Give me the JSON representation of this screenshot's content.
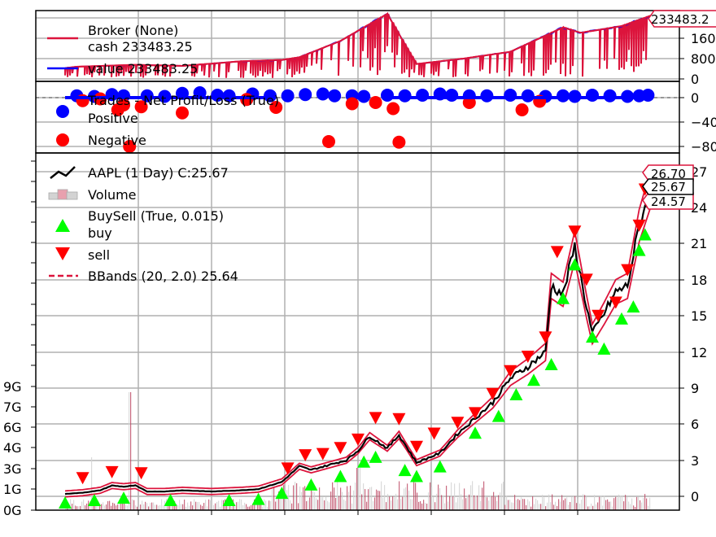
{
  "colors": {
    "broker": "#dc143c",
    "value": "#0000ff",
    "positive": "#0000ff",
    "negative": "#ff0000",
    "price": "#000000",
    "volume_up": "#d3d3d3",
    "volume_down": "#e8a0ae",
    "buy": "#00ff00",
    "sell": "#ff0000",
    "bbands": "#dc143c",
    "grid": "#b0b0b0"
  },
  "chart_data": [
    {
      "type": "line",
      "panel": "broker",
      "legend": {
        "title": "Broker (None)",
        "entries": [
          {
            "label": "cash 233483.25",
            "color": "#dc143c"
          },
          {
            "label": "value 233483.25",
            "color": "#0000ff"
          }
        ]
      },
      "last_value_tag": "233483.2",
      "yticks": [
        "160",
        "800",
        "0"
      ],
      "ylim": [
        0,
        240000
      ],
      "series": [
        {
          "name": "cash",
          "x": [
            0,
            0.02,
            0.12,
            0.2,
            0.3,
            0.37,
            0.4,
            0.47,
            0.55,
            0.59,
            0.6,
            0.68,
            0.76,
            0.85,
            0.88,
            0.95,
            1.0
          ],
          "values": [
            40000,
            45000,
            52000,
            48000,
            65000,
            70000,
            80000,
            140000,
            240000,
            90000,
            55000,
            75000,
            100000,
            190000,
            170000,
            195000,
            233483
          ]
        },
        {
          "name": "value",
          "x": [
            0,
            0.02,
            0.12,
            0.2,
            0.3,
            0.37,
            0.4,
            0.47,
            0.55,
            0.59,
            0.6,
            0.68,
            0.76,
            0.85,
            0.88,
            0.95,
            1.0
          ],
          "values": [
            40000,
            45000,
            52000,
            48000,
            65000,
            70000,
            80000,
            140000,
            240000,
            90000,
            55000,
            75000,
            100000,
            190000,
            170000,
            195000,
            233483
          ]
        }
      ]
    },
    {
      "type": "scatter",
      "panel": "trades",
      "legend": {
        "title": "Trades - Net Profit/Loss (True)",
        "entries": [
          {
            "label": "Positive",
            "color": "#0000ff"
          },
          {
            "label": "Negative",
            "color": "#ff0000"
          }
        ]
      },
      "yticks": [
        "0",
        "−40",
        "−80"
      ],
      "ylim": [
        -100,
        10
      ],
      "positive_points": [
        [
          0.02,
          3
        ],
        [
          0.05,
          2
        ],
        [
          0.08,
          5
        ],
        [
          0.1,
          3
        ],
        [
          0.14,
          3
        ],
        [
          0.17,
          2
        ],
        [
          0.2,
          7
        ],
        [
          0.23,
          8
        ],
        [
          0.26,
          4
        ],
        [
          0.28,
          3
        ],
        [
          0.32,
          6
        ],
        [
          0.35,
          3
        ],
        [
          0.38,
          3
        ],
        [
          0.41,
          5
        ],
        [
          0.44,
          6
        ],
        [
          0.46,
          3
        ],
        [
          0.49,
          3
        ],
        [
          0.51,
          2
        ],
        [
          0.55,
          4
        ],
        [
          0.58,
          3
        ],
        [
          0.61,
          4
        ],
        [
          0.64,
          6
        ],
        [
          0.66,
          4
        ],
        [
          0.69,
          3
        ],
        [
          0.72,
          3
        ],
        [
          0.76,
          4
        ],
        [
          0.79,
          3
        ],
        [
          0.82,
          2
        ],
        [
          0.85,
          3
        ],
        [
          0.87,
          2
        ],
        [
          0.9,
          4
        ],
        [
          0.93,
          3
        ],
        [
          0.96,
          2
        ],
        [
          0.98,
          3
        ],
        [
          0.995,
          4
        ]
      ],
      "negative_points": [
        [
          0.03,
          -5
        ],
        [
          0.06,
          -2
        ],
        [
          0.09,
          -20
        ],
        [
          0.1,
          -12
        ],
        [
          0.11,
          -80
        ],
        [
          0.13,
          -15
        ],
        [
          0.2,
          -25
        ],
        [
          0.31,
          -3
        ],
        [
          0.36,
          -16
        ],
        [
          0.45,
          -72
        ],
        [
          0.49,
          -10
        ],
        [
          0.53,
          -8
        ],
        [
          0.56,
          -18
        ],
        [
          0.57,
          -73
        ],
        [
          0.69,
          -8
        ],
        [
          0.78,
          -20
        ],
        [
          0.81,
          -6
        ]
      ]
    },
    {
      "type": "line",
      "panel": "price",
      "legend": {
        "entries": [
          {
            "label": "AAPL (1 Day) C:25.67",
            "kind": "line",
            "color": "#000000"
          },
          {
            "label": "Volume",
            "kind": "bar",
            "color": "#d3d3d3"
          },
          {
            "label": "BuySell (True, 0.015)",
            "kind": "title"
          },
          {
            "label": "buy",
            "kind": "triangle-up",
            "color": "#00ff00"
          },
          {
            "label": "sell",
            "kind": "triangle-down",
            "color": "#ff0000"
          },
          {
            "label": "BBands (20, 2.0) 25.64",
            "kind": "dashed",
            "color": "#dc143c"
          }
        ]
      },
      "last_value_tags": {
        "upper": "26.70",
        "close": "25.67",
        "lower": "24.57"
      },
      "yticks": [
        "27",
        "24",
        "21",
        "18",
        "15",
        "12",
        "9",
        "6",
        "3",
        "0"
      ],
      "ylim": [
        -1.5,
        28.2
      ],
      "volume_ticks": [
        "9G",
        "7G",
        "6G",
        "4G",
        "3G",
        "1G",
        "0G"
      ],
      "x": [
        0,
        0.03,
        0.06,
        0.08,
        0.1,
        0.12,
        0.14,
        0.17,
        0.2,
        0.25,
        0.3,
        0.33,
        0.37,
        0.4,
        0.42,
        0.45,
        0.48,
        0.5,
        0.52,
        0.55,
        0.57,
        0.6,
        0.64,
        0.67,
        0.7,
        0.73,
        0.76,
        0.79,
        0.82,
        0.83,
        0.85,
        0.87,
        0.89,
        0.9,
        0.92,
        0.94,
        0.96,
        0.98,
        1.0
      ],
      "close": [
        0.2,
        0.3,
        0.5,
        0.9,
        0.8,
        0.9,
        0.4,
        0.4,
        0.5,
        0.4,
        0.5,
        0.6,
        1.2,
        2.5,
        2.2,
        2.6,
        3.0,
        3.8,
        5.0,
        4.0,
        5.1,
        2.8,
        3.6,
        5.2,
        6.5,
        7.8,
        9.8,
        10.8,
        12.0,
        17.5,
        16.8,
        20.8,
        15.8,
        13.5,
        15.2,
        17.0,
        17.5,
        22.5,
        25.67
      ],
      "buy_points": [
        [
          0.0,
          0.0
        ],
        [
          0.05,
          0.2
        ],
        [
          0.1,
          0.4
        ],
        [
          0.18,
          0.2
        ],
        [
          0.28,
          0.2
        ],
        [
          0.33,
          0.3
        ],
        [
          0.37,
          0.8
        ],
        [
          0.42,
          1.5
        ],
        [
          0.47,
          2.2
        ],
        [
          0.51,
          3.4
        ],
        [
          0.53,
          3.8
        ],
        [
          0.58,
          2.7
        ],
        [
          0.6,
          2.2
        ],
        [
          0.64,
          3.0
        ],
        [
          0.7,
          5.8
        ],
        [
          0.74,
          7.2
        ],
        [
          0.77,
          9.0
        ],
        [
          0.8,
          10.2
        ],
        [
          0.83,
          11.5
        ],
        [
          0.85,
          17.0
        ],
        [
          0.87,
          19.8
        ],
        [
          0.9,
          13.8
        ],
        [
          0.92,
          12.8
        ],
        [
          0.95,
          15.3
        ],
        [
          0.97,
          16.3
        ],
        [
          0.98,
          21.0
        ],
        [
          0.99,
          22.3
        ]
      ],
      "sell_points": [
        [
          0.03,
          1.0
        ],
        [
          0.08,
          1.5
        ],
        [
          0.13,
          1.4
        ],
        [
          0.38,
          1.8
        ],
        [
          0.41,
          2.9
        ],
        [
          0.44,
          3.0
        ],
        [
          0.47,
          3.5
        ],
        [
          0.5,
          4.2
        ],
        [
          0.53,
          6.0
        ],
        [
          0.57,
          5.9
        ],
        [
          0.6,
          3.6
        ],
        [
          0.63,
          4.7
        ],
        [
          0.67,
          5.6
        ],
        [
          0.7,
          6.4
        ],
        [
          0.73,
          8.0
        ],
        [
          0.76,
          9.9
        ],
        [
          0.79,
          11.1
        ],
        [
          0.82,
          12.7
        ],
        [
          0.84,
          19.8
        ],
        [
          0.87,
          21.5
        ],
        [
          0.89,
          17.5
        ],
        [
          0.91,
          14.5
        ],
        [
          0.94,
          15.6
        ],
        [
          0.96,
          18.3
        ],
        [
          0.98,
          22.0
        ],
        [
          0.99,
          25.0
        ]
      ]
    }
  ]
}
